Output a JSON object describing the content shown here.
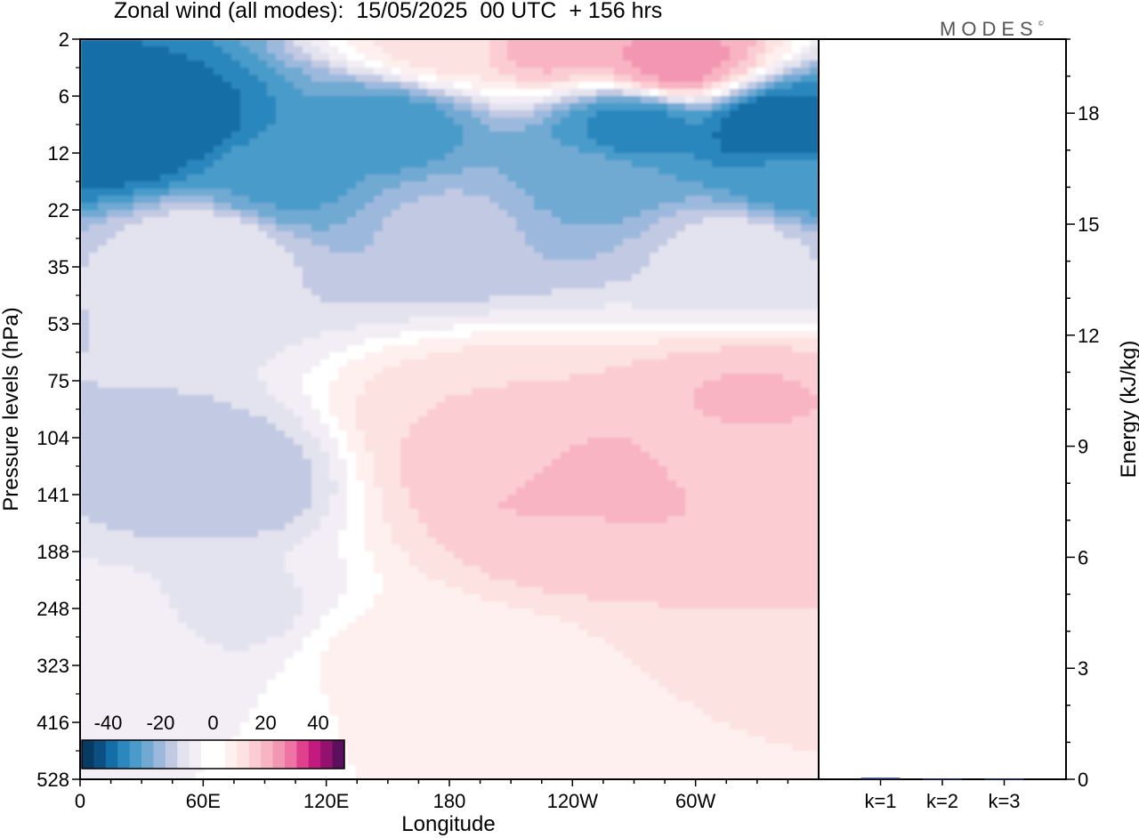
{
  "header": {
    "title": "Zonal wind (all modes):  15/05/2025  00 UTC  + 156 hrs",
    "brand": "MODES",
    "brand_mark": "©"
  },
  "colors": {
    "neg": [
      "#083b63",
      "#0c4f81",
      "#126ea6",
      "#2b87bd",
      "#4a9bca",
      "#70a9d2",
      "#9cb9dd",
      "#c2c9e2",
      "#e3e3ef",
      "#f3eef5"
    ],
    "zero": "#ffffff",
    "pos": [
      "#fdf0ee",
      "#fde2e2",
      "#fbcdd3",
      "#f8b4c2",
      "#f396b3",
      "#ee74a3",
      "#e0418e",
      "#c21a7d",
      "#92126d",
      "#5c0f5e"
    ]
  },
  "chart_data": [
    {
      "type": "heatmap",
      "title": "Zonal wind (all modes):  15/05/2025  00 UTC  + 156 hrs",
      "xlabel": "Longitude",
      "ylabel": "Pressure levels (hPa)",
      "x_ticks": [
        "0",
        "60E",
        "120E",
        "180",
        "120W",
        "60W"
      ],
      "x_tick_values": [
        0,
        60,
        120,
        180,
        240,
        300
      ],
      "xlim": [
        0,
        360
      ],
      "y_levels": [
        2,
        6,
        12,
        22,
        35,
        53,
        75,
        104,
        141,
        188,
        248,
        323,
        416,
        528
      ],
      "y_scale": "log-pressure (inverted)",
      "colorbar": {
        "ticks": [
          "-40",
          "-20",
          "0",
          "20",
          "40"
        ],
        "tick_values": [
          -40,
          -20,
          0,
          20,
          40
        ],
        "range": [
          -50,
          50
        ],
        "placement": "bottom-left"
      },
      "features": [
        {
          "lon": 180,
          "level": 2,
          "value": 10
        },
        {
          "lon": 230,
          "level": 2,
          "value": 20
        },
        {
          "lon": 290,
          "level": 3,
          "value": 24
        },
        {
          "lon": 40,
          "level": 8,
          "value": -40
        },
        {
          "lon": 20,
          "level": 10,
          "value": -42
        },
        {
          "lon": 150,
          "level": 9,
          "value": -30
        },
        {
          "lon": 270,
          "level": 9,
          "value": -34
        },
        {
          "lon": 340,
          "level": 9,
          "value": -42
        },
        {
          "lon": 100,
          "level": 16,
          "value": -28
        },
        {
          "lon": 250,
          "level": 16,
          "value": -24
        },
        {
          "lon": 350,
          "level": 16,
          "value": -30
        },
        {
          "lon": 180,
          "level": 25,
          "value": -16
        },
        {
          "lon": 60,
          "level": 30,
          "value": -8
        },
        {
          "lon": 320,
          "level": 30,
          "value": -10
        },
        {
          "lon": 200,
          "level": 95,
          "value": 12
        },
        {
          "lon": 210,
          "level": 120,
          "value": 15
        },
        {
          "lon": 240,
          "level": 135,
          "value": 22
        },
        {
          "lon": 235,
          "level": 180,
          "value": 14
        },
        {
          "lon": 200,
          "level": 300,
          "value": 6
        },
        {
          "lon": 320,
          "level": 104,
          "value": 14
        },
        {
          "lon": 325,
          "level": 90,
          "value": 18
        },
        {
          "lon": 68,
          "level": 130,
          "value": -16
        },
        {
          "lon": 78,
          "level": 250,
          "value": -8
        },
        {
          "lon": 20,
          "level": 300,
          "value": -4
        },
        {
          "lon": 150,
          "level": 300,
          "value": 3
        }
      ]
    },
    {
      "type": "bar",
      "title": "",
      "ylabel": "Energy (kJ/kg)",
      "categories": [
        "k=1",
        "k=2",
        "k=3"
      ],
      "values": [
        0.04,
        0.02,
        0.02
      ],
      "ylim": [
        0,
        20
      ],
      "y_ticks": [
        0,
        3,
        6,
        9,
        12,
        15,
        18
      ],
      "axis_position": "right"
    }
  ]
}
